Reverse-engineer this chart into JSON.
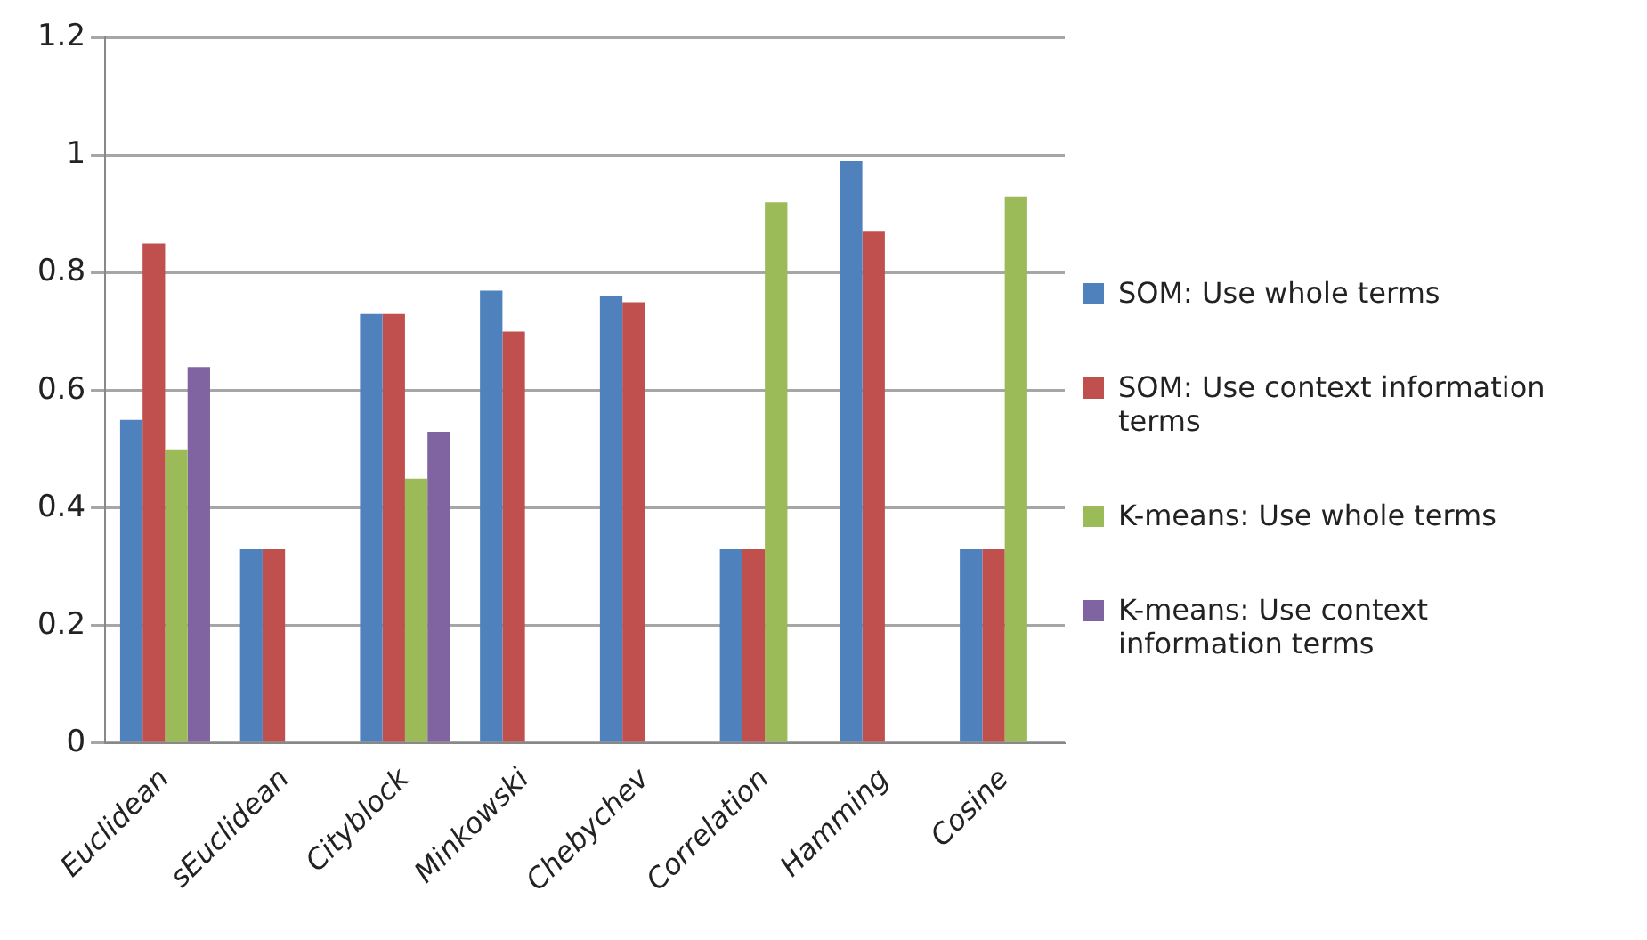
{
  "chart_data": {
    "type": "bar",
    "categories": [
      "Euclidean",
      "sEuclidean",
      "Cityblock",
      "Minkowski",
      "Chebychev",
      "Correlation",
      "Hamming",
      "Cosine"
    ],
    "series": [
      {
        "name": "SOM: Use whole terms",
        "color": "#4f81bd",
        "values": [
          0.55,
          0.33,
          0.73,
          0.77,
          0.76,
          0.33,
          0.99,
          0.33
        ]
      },
      {
        "name": "SOM: Use context information terms",
        "color": "#c0504d",
        "values": [
          0.85,
          0.33,
          0.73,
          0.7,
          0.75,
          0.33,
          0.87,
          0.33
        ]
      },
      {
        "name": "K-means: Use whole terms",
        "color": "#9bbb59",
        "values": [
          0.5,
          null,
          0.45,
          null,
          null,
          0.92,
          null,
          0.93
        ]
      },
      {
        "name": "K-means: Use context information terms",
        "color": "#8064a2",
        "values": [
          0.64,
          null,
          0.53,
          null,
          null,
          null,
          null,
          null
        ]
      }
    ],
    "ylim": [
      0,
      1.2
    ],
    "yticks": [
      0,
      0.2,
      0.4,
      0.6,
      0.8,
      1,
      1.2
    ],
    "grid": "y",
    "legend": "right"
  }
}
